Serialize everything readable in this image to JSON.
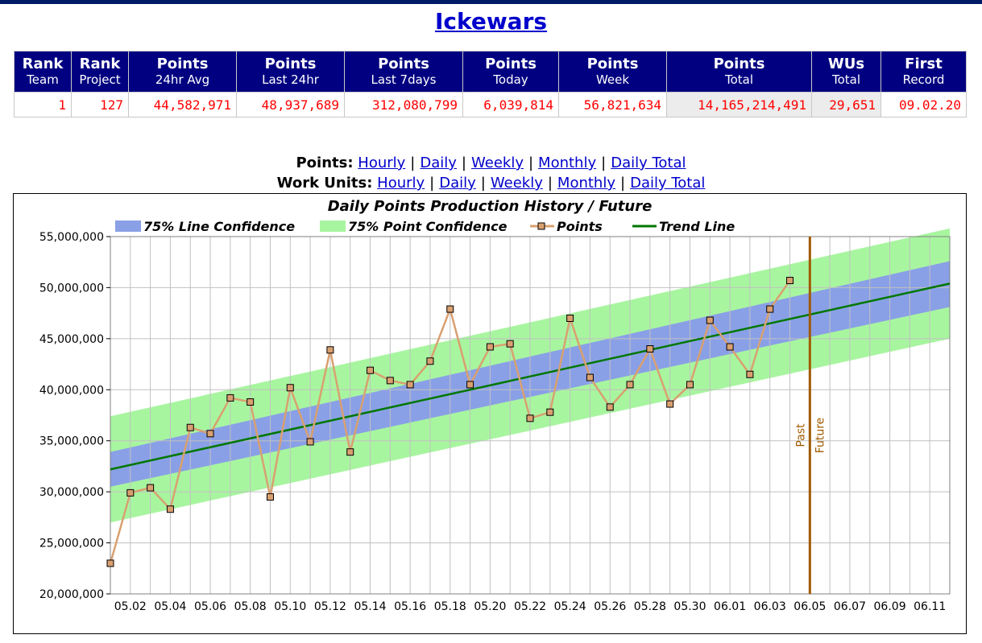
{
  "page": {
    "title": "Ickewars"
  },
  "stats": {
    "headers": [
      {
        "main": "Rank",
        "sub": "Team"
      },
      {
        "main": "Rank",
        "sub": "Project"
      },
      {
        "main": "Points",
        "sub": "24hr Avg"
      },
      {
        "main": "Points",
        "sub": "Last 24hr"
      },
      {
        "main": "Points",
        "sub": "Last 7days"
      },
      {
        "main": "Points",
        "sub": "Today"
      },
      {
        "main": "Points",
        "sub": "Week"
      },
      {
        "main": "Points",
        "sub": "Total"
      },
      {
        "main": "WUs",
        "sub": "Total"
      },
      {
        "main": "First",
        "sub": "Record"
      }
    ],
    "values": [
      "1",
      "127",
      "44,582,971",
      "48,937,689",
      "312,080,799",
      "6,039,814",
      "56,821,634",
      "14,165,214,491",
      "29,651",
      "09.02.20"
    ]
  },
  "links": {
    "points_label": "Points:",
    "wu_label": "Work Units:",
    "points_links": [
      "Hourly",
      "Daily",
      "Weekly",
      "Monthly",
      "Daily Total"
    ],
    "wu_links": [
      "Hourly",
      "Daily",
      "Weekly",
      "Monthly",
      "Daily Total"
    ],
    "separator": "|"
  },
  "chart_data": {
    "type": "line",
    "title": "Daily Points Production History / Future",
    "legend": {
      "placement": "top",
      "entries": [
        "75% Line Confidence",
        "75% Point Confidence",
        "Points",
        "Trend Line"
      ]
    },
    "colors": {
      "line_confidence": "#8aa0e6",
      "point_confidence": "#a8f5a0",
      "points_line": "#d9a070",
      "points_marker": "#d9a070",
      "trend_line": "#007700",
      "marker_line": "#a05a00",
      "grid": "#c0c0c0"
    },
    "x_tick_labels": [
      "05.02",
      "05.04",
      "05.06",
      "05.08",
      "05.10",
      "05.12",
      "05.14",
      "05.16",
      "05.18",
      "05.20",
      "05.22",
      "05.24",
      "05.26",
      "05.28",
      "05.30",
      "06.01",
      "06.03",
      "06.05",
      "06.07",
      "06.09",
      "06.11"
    ],
    "x_range": [
      "05.01",
      "06.12"
    ],
    "y_range": [
      20000000,
      55000000
    ],
    "y_ticks": [
      20000000,
      25000000,
      30000000,
      35000000,
      40000000,
      45000000,
      50000000,
      55000000
    ],
    "y_tick_labels": [
      "20,000,000",
      "25,000,000",
      "30,000,000",
      "35,000,000",
      "40,000,000",
      "45,000,000",
      "50,000,000",
      "55,000,000"
    ],
    "grid": true,
    "points": {
      "name": "Points",
      "x": [
        "05.01",
        "05.02",
        "05.03",
        "05.04",
        "05.05",
        "05.06",
        "05.07",
        "05.08",
        "05.09",
        "05.10",
        "05.11",
        "05.12",
        "05.13",
        "05.14",
        "05.15",
        "05.16",
        "05.17",
        "05.18",
        "05.19",
        "05.20",
        "05.21",
        "05.22",
        "05.23",
        "05.24",
        "05.25",
        "05.26",
        "05.27",
        "05.28",
        "05.29",
        "05.30",
        "05.31",
        "06.01",
        "06.02",
        "06.03",
        "06.04"
      ],
      "values": [
        23000000,
        29900000,
        30400000,
        28300000,
        36300000,
        35700000,
        39200000,
        38800000,
        29500000,
        40200000,
        34900000,
        43900000,
        33900000,
        41900000,
        40900000,
        40500000,
        42800000,
        47900000,
        40500000,
        44200000,
        44500000,
        37200000,
        37800000,
        47000000,
        41200000,
        38300000,
        40500000,
        44000000,
        38600000,
        40500000,
        46800000,
        44200000,
        41500000,
        47900000,
        50700000
      ]
    },
    "trend_line": {
      "name": "Trend Line",
      "start": {
        "x": "05.01",
        "y": 32200000
      },
      "end": {
        "x": "06.12",
        "y": 50400000
      }
    },
    "line_confidence": {
      "name": "75% Line Confidence",
      "start": {
        "x": "05.01",
        "upper": 33900000,
        "lower": 30500000
      },
      "end": {
        "x": "06.12",
        "upper": 52600000,
        "lower": 48100000
      }
    },
    "point_confidence": {
      "name": "75% Point Confidence",
      "start": {
        "x": "05.01",
        "upper": 37400000,
        "lower": 27000000
      },
      "end": {
        "x": "06.12",
        "upper": 55800000,
        "lower": 45000000
      }
    },
    "divider": {
      "x": "06.05",
      "left_label": "Past",
      "right_label": "Future"
    }
  }
}
